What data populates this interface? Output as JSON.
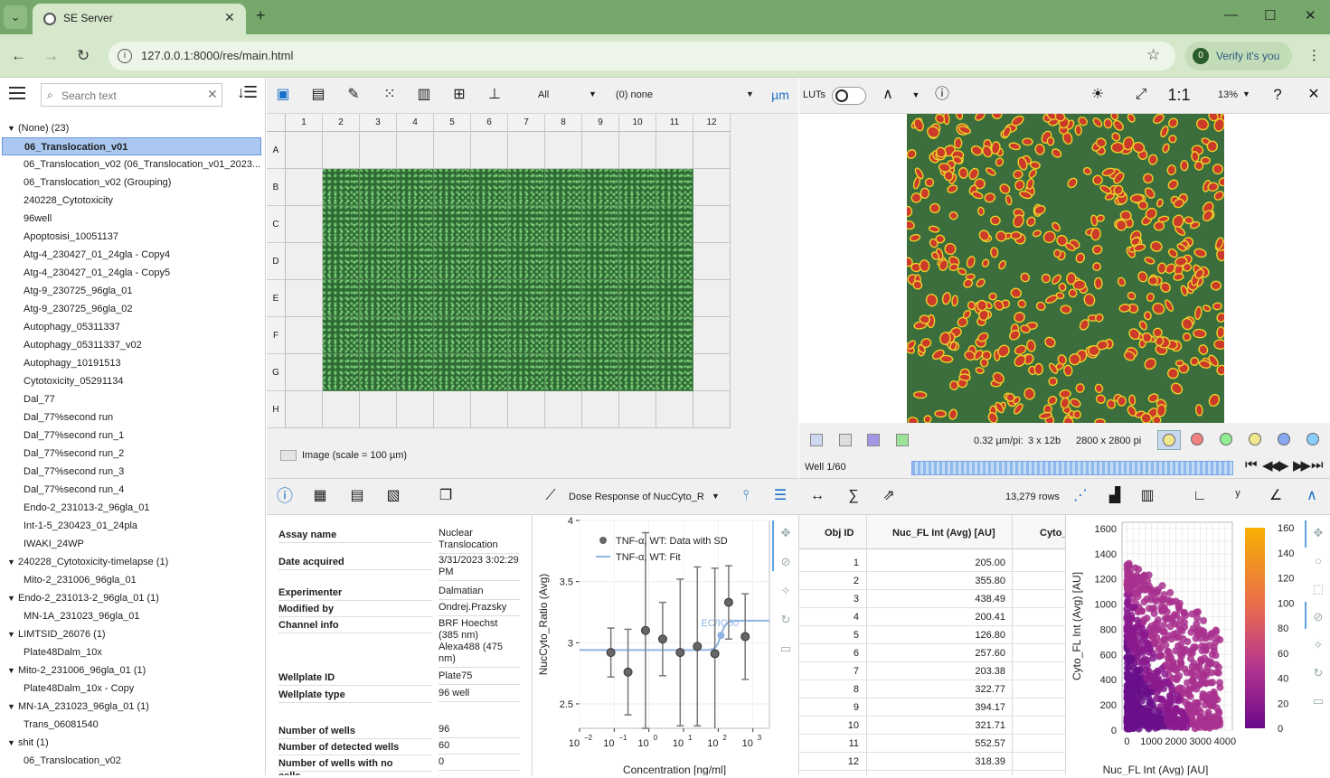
{
  "browser": {
    "tab_title": "SE Server",
    "url": "127.0.0.1:8000/res/main.html",
    "verify_label": "Verify it's you"
  },
  "left": {
    "search_placeholder": "Search text",
    "tree": [
      {
        "type": "group",
        "label": "(None) (23)"
      },
      {
        "type": "item",
        "label": "06_Translocation_v01",
        "selected": true
      },
      {
        "type": "item",
        "label": "06_Translocation_v02 (06_Translocation_v01_2023..."
      },
      {
        "type": "item",
        "label": "06_Translocation_v02 (Grouping)"
      },
      {
        "type": "item",
        "label": "240228_Cytotoxicity"
      },
      {
        "type": "item",
        "label": "96well"
      },
      {
        "type": "item",
        "label": "Apoptosisi_10051137"
      },
      {
        "type": "item",
        "label": "Atg-4_230427_01_24gla - Copy4"
      },
      {
        "type": "item",
        "label": "Atg-4_230427_01_24gla - Copy5"
      },
      {
        "type": "item",
        "label": "Atg-9_230725_96gla_01"
      },
      {
        "type": "item",
        "label": "Atg-9_230725_96gla_02"
      },
      {
        "type": "item",
        "label": "Autophagy_05311337"
      },
      {
        "type": "item",
        "label": "Autophagy_05311337_v02"
      },
      {
        "type": "item",
        "label": "Autophagy_10191513"
      },
      {
        "type": "item",
        "label": "Cytotoxicity_05291134"
      },
      {
        "type": "item",
        "label": "Dal_77"
      },
      {
        "type": "item",
        "label": "Dal_77%second run"
      },
      {
        "type": "item",
        "label": "Dal_77%second run_1"
      },
      {
        "type": "item",
        "label": "Dal_77%second run_2"
      },
      {
        "type": "item",
        "label": "Dal_77%second run_3"
      },
      {
        "type": "item",
        "label": "Dal_77%second run_4"
      },
      {
        "type": "item",
        "label": "Endo-2_231013-2_96gla_01"
      },
      {
        "type": "item",
        "label": "Int-1-5_230423_01_24pla"
      },
      {
        "type": "item",
        "label": "IWAKI_24WP"
      },
      {
        "type": "group",
        "label": "240228_Cytotoxicity-timelapse (1)"
      },
      {
        "type": "item",
        "label": "Mito-2_231006_96gla_01"
      },
      {
        "type": "group",
        "label": "Endo-2_231013-2_96gla_01 (1)"
      },
      {
        "type": "item",
        "label": "MN-1A_231023_96gla_01"
      },
      {
        "type": "group",
        "label": "LIMTSID_26076 (1)"
      },
      {
        "type": "item",
        "label": "Plate48Dalm_10x"
      },
      {
        "type": "group",
        "label": "Mito-2_231006_96gla_01 (1)"
      },
      {
        "type": "item",
        "label": "Plate48Dalm_10x - Copy"
      },
      {
        "type": "group",
        "label": "MN-1A_231023_96gla_01 (1)"
      },
      {
        "type": "item",
        "label": "Trans_06081540"
      },
      {
        "type": "group",
        "label": "shit (1)"
      },
      {
        "type": "item",
        "label": "06_Translocation_v02"
      }
    ]
  },
  "plate_toolbar": {
    "filter_value": "All",
    "group_value": "(0) none",
    "unit_label": "µm"
  },
  "plate": {
    "columns": [
      "1",
      "2",
      "3",
      "4",
      "5",
      "6",
      "7",
      "8",
      "9",
      "10",
      "11",
      "12"
    ],
    "rows": [
      "A",
      "B",
      "C",
      "D",
      "E",
      "F",
      "G",
      "H"
    ],
    "image_rows": [
      "B",
      "C",
      "D",
      "E",
      "F",
      "G"
    ],
    "image_cols": [
      "2",
      "3",
      "4",
      "5",
      "6",
      "7",
      "8",
      "9",
      "10",
      "11"
    ],
    "legend": "Image (scale = 100 µm)"
  },
  "viewer": {
    "luts_label": "LUTs",
    "ratio_label": "1:1",
    "zoom": "13%",
    "help": "?",
    "pixel_size": "0.32 µm/pi:",
    "channels": "3 x 12b",
    "dims": "2800 x 2800 pi",
    "well_label": "Well 1/60",
    "channel_colors": [
      "#f0e68c",
      "#f08080",
      "#90ee90",
      "#f0e68c",
      "#87a9f0",
      "#87cefa"
    ]
  },
  "info": {
    "rows": [
      {
        "k": "Assay name",
        "v": "Nuclear Translocation"
      },
      {
        "k": "Date acquired",
        "v": "3/31/2023 3:02:29 PM"
      },
      {
        "k": "Experimenter",
        "v": "Dalmatian"
      },
      {
        "k": "Modified by",
        "v": "Ondrej.Prazsky"
      },
      {
        "k": "Channel info",
        "v": "BRF Hoechst (385 nm) Alexa488 (475 nm)"
      },
      {
        "k": "Wellplate ID",
        "v": "Plate75"
      },
      {
        "k": "Wellplate type",
        "v": "96 well"
      },
      {
        "k": "Number of wells",
        "v": "96"
      },
      {
        "k": "Number of detected wells",
        "v": "60"
      },
      {
        "k": "Number of wells with no",
        "v": "0"
      }
    ],
    "last_key_tail": "cells"
  },
  "dose": {
    "dropdown": "Dose Response of NucCyto_R...",
    "chart_data": {
      "type": "scatter",
      "ylabel": "NucCyto_Ratio (Avg)",
      "xlabel": "Concentration [ng/ml]",
      "xscale": "log",
      "xlim": [
        0.01,
        3000
      ],
      "ylim": [
        2.3,
        4.0
      ],
      "y_ticks": [
        "2.5",
        "3",
        "3.5",
        "4"
      ],
      "x_ticks": [
        "10",
        "10",
        "10",
        "10",
        "10",
        "10"
      ],
      "x_tick_exps": [
        "−2",
        "−1",
        "0",
        "1",
        "2",
        "3"
      ],
      "series": [
        {
          "name": "TNF-α, WT: Data with SD",
          "points": [
            {
              "x": 0.08,
              "y": 2.92,
              "sd": 0.2
            },
            {
              "x": 0.25,
              "y": 2.76,
              "sd": 0.35
            },
            {
              "x": 0.8,
              "y": 3.1,
              "sd": 0.8
            },
            {
              "x": 2.5,
              "y": 3.03,
              "sd": 0.3
            },
            {
              "x": 8,
              "y": 2.92,
              "sd": 0.6
            },
            {
              "x": 25,
              "y": 2.97,
              "sd": 0.65
            },
            {
              "x": 80,
              "y": 2.91,
              "sd": 0.7
            },
            {
              "x": 200,
              "y": 3.33,
              "sd": 0.3
            },
            {
              "x": 600,
              "y": 3.05,
              "sd": 0.35
            }
          ]
        },
        {
          "name": "TNF-α, WT: Fit",
          "bottom": 2.94,
          "top": 3.18,
          "ec50": 120
        }
      ],
      "annotation": "EC/IC50"
    }
  },
  "table": {
    "rows_count": "13,279 rows",
    "headers": [
      "Obj ID",
      "Nuc_FL Int (Avg) [AU]",
      "Cyto_"
    ],
    "rows": [
      [
        "1",
        "205.00"
      ],
      [
        "2",
        "355.80"
      ],
      [
        "3",
        "438.49"
      ],
      [
        "4",
        "200.41"
      ],
      [
        "5",
        "126.80"
      ],
      [
        "6",
        "257.60"
      ],
      [
        "7",
        "203.38"
      ],
      [
        "8",
        "322.77"
      ],
      [
        "9",
        "394.17"
      ],
      [
        "10",
        "321.71"
      ],
      [
        "11",
        "552.57"
      ],
      [
        "12",
        "318.39"
      ]
    ]
  },
  "scatter": {
    "chart_data": {
      "type": "scatter",
      "xlabel": "Nuc_FL Int (Avg) [AU]",
      "ylabel": "Cyto_FL Int (Avg) [AU]",
      "xlim": [
        -200,
        4300
      ],
      "ylim": [
        0,
        1650
      ],
      "x_ticks": [
        "0",
        "1000",
        "2000",
        "3000",
        "4000"
      ],
      "y_ticks": [
        "0",
        "200",
        "400",
        "600",
        "800",
        "1000",
        "1200",
        "1400",
        "1600"
      ],
      "colorbar_ticks": [
        "0",
        "20",
        "40",
        "60",
        "80",
        "100",
        "120",
        "140",
        "160"
      ],
      "grid": true
    }
  }
}
